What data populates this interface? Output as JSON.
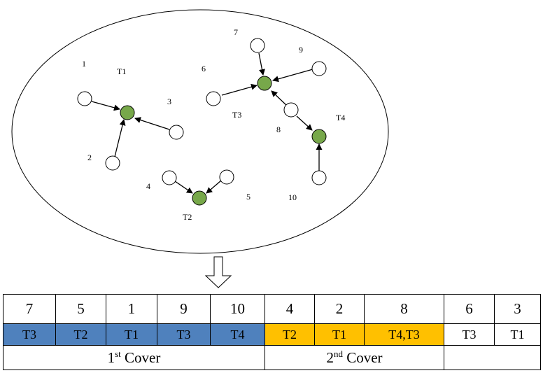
{
  "colors": {
    "green": "#77a84a",
    "blue": "#4f81bd",
    "orange": "#ffc000",
    "white": "#ffffff"
  },
  "nodes": [
    {
      "id": "7",
      "label": "7"
    },
    {
      "id": "9",
      "label": "9"
    },
    {
      "id": "1",
      "label": "1"
    },
    {
      "id": "6",
      "label": "6"
    },
    {
      "id": "3",
      "label": "3"
    },
    {
      "id": "8",
      "label": "8"
    },
    {
      "id": "2",
      "label": "2"
    },
    {
      "id": "4",
      "label": "4"
    },
    {
      "id": "5",
      "label": "5"
    },
    {
      "id": "10",
      "label": "10"
    }
  ],
  "targets": [
    {
      "id": "T1",
      "label": "T1"
    },
    {
      "id": "T2",
      "label": "T2"
    },
    {
      "id": "T3",
      "label": "T3"
    },
    {
      "id": "T4",
      "label": "T4"
    }
  ],
  "table": {
    "order": [
      "7",
      "5",
      "1",
      "9",
      "10",
      "4",
      "2",
      "8",
      "6",
      "3"
    ],
    "targets": [
      {
        "text": "T3",
        "fill": "blue"
      },
      {
        "text": "T2",
        "fill": "blue"
      },
      {
        "text": "T1",
        "fill": "blue"
      },
      {
        "text": "T3",
        "fill": "blue"
      },
      {
        "text": "T4",
        "fill": "blue"
      },
      {
        "text": "T2",
        "fill": "orange"
      },
      {
        "text": "T1",
        "fill": "orange"
      },
      {
        "text": "T4,T3",
        "fill": "orange"
      },
      {
        "text": "T3",
        "fill": "white"
      },
      {
        "text": "T1",
        "fill": "white"
      }
    ],
    "cover1": {
      "num": "1",
      "sup": "st",
      "word": " Cover"
    },
    "cover2": {
      "num": "2",
      "sup": "nd",
      "word": " Cover"
    }
  }
}
